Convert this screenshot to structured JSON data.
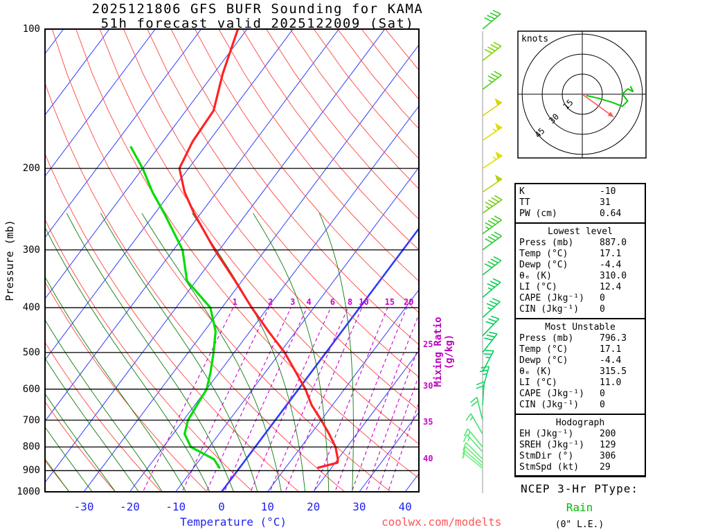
{
  "title": {
    "line1": "2025121806 GFS BUFR Sounding for KAMA",
    "line2": "51h forecast valid 2025122009 (Sat)"
  },
  "axes": {
    "x_label": "Temperature (°C)",
    "y_label": "Pressure (mb)",
    "mixing_label": "Mixing Ratio (g/kg)",
    "pressure_ticks": [
      100,
      200,
      300,
      400,
      500,
      600,
      700,
      800,
      900,
      1000
    ],
    "temp_ticks": [
      -30,
      -20,
      -10,
      0,
      10,
      20,
      30,
      40
    ]
  },
  "watermark": "coolwx.com/modelts",
  "hodograph": {
    "unit_label": "knots",
    "rings": [
      15,
      30,
      45
    ],
    "trace_uv": [
      [
        3,
        -1
      ],
      [
        12,
        -3
      ],
      [
        22,
        -6
      ],
      [
        30,
        -9
      ],
      [
        34,
        -5
      ],
      [
        30,
        0
      ],
      [
        34,
        4
      ],
      [
        38,
        2
      ],
      [
        36,
        6
      ]
    ],
    "storm_dir": 306,
    "storm_spd": 29,
    "trace_color": "#00cc00",
    "arrow_color": "#ff5050"
  },
  "ptype": {
    "heading": "NCEP 3-Hr PType:",
    "value": "Rain",
    "extra": "(0\" L.E.)"
  },
  "table": {
    "sections": [
      {
        "header": null,
        "rows": [
          [
            "K",
            "-10"
          ],
          [
            "TT",
            "31"
          ],
          [
            "PW (cm)",
            "0.64"
          ]
        ]
      },
      {
        "header": "Lowest level",
        "rows": [
          [
            "Press (mb)",
            "887.0"
          ],
          [
            "Temp (°C)",
            "17.1"
          ],
          [
            "Dewp (°C)",
            "-4.4"
          ],
          [
            "θₑ (K)",
            "310.0"
          ],
          [
            "LI (°C)",
            "12.4"
          ],
          [
            "CAPE (Jkg⁻¹)",
            "0"
          ],
          [
            "CIN (Jkg⁻¹)",
            "0"
          ]
        ]
      },
      {
        "header": "Most Unstable",
        "rows": [
          [
            "Press (mb)",
            "796.3"
          ],
          [
            "Temp (°C)",
            "17.1"
          ],
          [
            "Dewp (°C)",
            "-4.4"
          ],
          [
            "θₑ (K)",
            "315.5"
          ],
          [
            "LI (°C)",
            "11.0"
          ],
          [
            "CAPE (Jkg⁻¹)",
            "0"
          ],
          [
            "CIN (Jkg⁻¹)",
            "0"
          ]
        ]
      },
      {
        "header": "Hodograph",
        "rows": [
          [
            "EH (Jkg⁻¹)",
            "200"
          ],
          [
            "SREH (Jkg⁻¹)",
            "129"
          ],
          [
            "StmDir (°)",
            "306"
          ],
          [
            "StmSpd (kt)",
            "29"
          ]
        ]
      }
    ]
  },
  "chart_data": {
    "type": "line",
    "subtype": "skew_t_log_p",
    "title": "2025121806 GFS BUFR Sounding for KAMA / 51h forecast valid 2025122009 (Sat)",
    "xlabel": "Temperature (°C)",
    "ylabel": "Pressure (mb)",
    "y_scale": "log",
    "ylim": [
      1000,
      100
    ],
    "x_ticks": [
      -30,
      -20,
      -10,
      0,
      10,
      20,
      30,
      40
    ],
    "grid": "skew-t background (isotherms, dry/moist adiabats, mixing ratio lines)",
    "isotherms": {
      "min": -120,
      "max": 40,
      "step": 10,
      "color": "#2e3bff",
      "bold_value": 0
    },
    "dry_adiabats_K": {
      "min": 240,
      "max": 450,
      "step": 10,
      "color": "#ff4444"
    },
    "moist_adiabats_C": {
      "min": -40,
      "max": 30,
      "step": 5,
      "color": "#0a7a0a",
      "top_p": 250
    },
    "mixing_ratio_lines": {
      "values": [
        1,
        2,
        3,
        4,
        6,
        8,
        10,
        15,
        20,
        25,
        30,
        35,
        40
      ],
      "color": "#cc00cc",
      "label_p": 400
    },
    "mixing_ratio_edge_labels": [
      {
        "value": 25,
        "y": 497
      },
      {
        "value": 30,
        "y": 557
      },
      {
        "value": 35,
        "y": 609
      },
      {
        "value": 40,
        "y": 662
      }
    ],
    "series": [
      {
        "name": "Temperature",
        "color": "#ff2222",
        "points_p_t": [
          [
            887,
            17.1
          ],
          [
            865,
            20.5
          ],
          [
            850,
            20.0
          ],
          [
            800,
            17.5
          ],
          [
            750,
            14.0
          ],
          [
            700,
            10.0
          ],
          [
            650,
            5.5
          ],
          [
            600,
            1.5
          ],
          [
            550,
            -3.5
          ],
          [
            500,
            -9.0
          ],
          [
            450,
            -16.0
          ],
          [
            400,
            -23.5
          ],
          [
            350,
            -31.5
          ],
          [
            300,
            -41.0
          ],
          [
            250,
            -51.5
          ],
          [
            225,
            -57.0
          ],
          [
            200,
            -62.0
          ],
          [
            175,
            -63.5
          ],
          [
            150,
            -64.0
          ],
          [
            125,
            -68.0
          ],
          [
            100,
            -72.0
          ]
        ]
      },
      {
        "name": "Dewpoint",
        "color": "#00dd00",
        "points_p_t": [
          [
            887,
            -4.4
          ],
          [
            850,
            -7.0
          ],
          [
            800,
            -14.0
          ],
          [
            750,
            -17.5
          ],
          [
            700,
            -19.0
          ],
          [
            650,
            -19.5
          ],
          [
            600,
            -20.0
          ],
          [
            550,
            -22.0
          ],
          [
            500,
            -24.5
          ],
          [
            450,
            -27.5
          ],
          [
            400,
            -32.5
          ],
          [
            350,
            -42.0
          ],
          [
            300,
            -48.0
          ],
          [
            250,
            -58.0
          ],
          [
            225,
            -64.0
          ],
          [
            200,
            -70.0
          ],
          [
            180,
            -76.0
          ]
        ]
      }
    ],
    "wind_barbs": [
      [
        100,
        40,
        230,
        "#2ecc2e"
      ],
      [
        117,
        40,
        232,
        "#7fd400"
      ],
      [
        135,
        35,
        233,
        "#52cf12"
      ],
      [
        154,
        50,
        235,
        "#d6d600"
      ],
      [
        174,
        55,
        236,
        "#dede00"
      ],
      [
        200,
        55,
        237,
        "#dede00"
      ],
      [
        225,
        50,
        236,
        "#b0d400"
      ],
      [
        250,
        45,
        235,
        "#72cc12"
      ],
      [
        277,
        45,
        234,
        "#40cc22"
      ],
      [
        300,
        40,
        234,
        "#2bcc33"
      ],
      [
        340,
        40,
        232,
        "#18cc44"
      ],
      [
        380,
        35,
        230,
        "#0acc4e"
      ],
      [
        420,
        35,
        228,
        "#05cc55"
      ],
      [
        460,
        30,
        224,
        "#02cc58"
      ],
      [
        500,
        30,
        218,
        "#00cc5c"
      ],
      [
        550,
        25,
        208,
        "#00d062"
      ],
      [
        600,
        25,
        196,
        "#0bd464"
      ],
      [
        650,
        20,
        184,
        "#1cd968"
      ],
      [
        700,
        20,
        166,
        "#30dd6c"
      ],
      [
        750,
        15,
        150,
        "#44e070"
      ],
      [
        800,
        15,
        141,
        "#52e673"
      ],
      [
        820,
        15,
        138,
        "#5ae976"
      ],
      [
        850,
        10,
        135,
        "#62ec78"
      ],
      [
        865,
        10,
        133,
        "#67ee7a"
      ],
      [
        880,
        10,
        131,
        "#6bf07c"
      ],
      [
        890,
        5,
        129,
        "#6ff27e"
      ]
    ]
  }
}
